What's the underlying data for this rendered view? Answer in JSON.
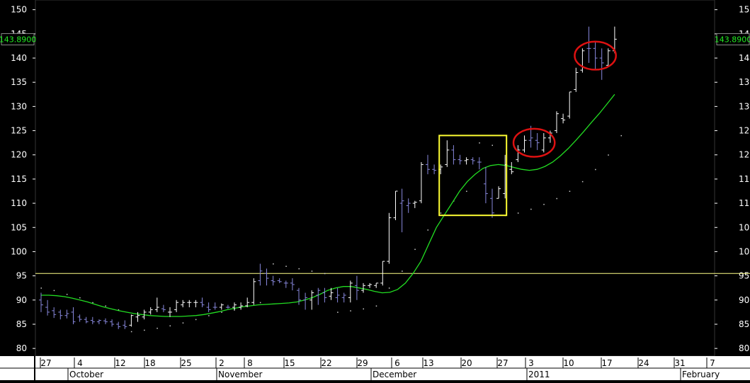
{
  "price_readout": "143.8900",
  "chart_data": {
    "type": "ohlc",
    "ylim": [
      80,
      152
    ],
    "y_ticks": [
      80,
      85,
      90,
      95,
      100,
      105,
      110,
      115,
      120,
      125,
      130,
      135,
      140,
      145,
      150
    ],
    "horizontal_line": 95.5,
    "last_price": 143.89,
    "x_day_labels": [
      "27",
      "4",
      "12",
      "18",
      "25",
      "2",
      "8",
      "15",
      "22",
      "29",
      "6",
      "13",
      "20",
      "27",
      "3",
      "10",
      "17",
      "24",
      "31",
      "7"
    ],
    "x_month_labels": [
      "October",
      "November",
      "December",
      "2011",
      "February"
    ],
    "bars": [
      {
        "high": 91.5,
        "low": 87.5,
        "open": 90,
        "close": 89,
        "dir": "down"
      },
      {
        "high": 90,
        "low": 86.8,
        "open": 88.5,
        "close": 87.5,
        "dir": "down"
      },
      {
        "high": 88.5,
        "low": 86.3,
        "open": 87.8,
        "close": 87.0,
        "dir": "down"
      },
      {
        "high": 88,
        "low": 86,
        "open": 87.5,
        "close": 86.8,
        "dir": "down"
      },
      {
        "high": 88,
        "low": 86.2,
        "open": 86.8,
        "close": 87.2,
        "dir": "down"
      },
      {
        "high": 88.5,
        "low": 85,
        "open": 87.5,
        "close": 85.5,
        "dir": "down"
      },
      {
        "high": 87,
        "low": 85.5,
        "open": 86.5,
        "close": 86,
        "dir": "down"
      },
      {
        "high": 86.5,
        "low": 85.2,
        "open": 86,
        "close": 85.5,
        "dir": "down"
      },
      {
        "high": 86.5,
        "low": 85,
        "open": 85.8,
        "close": 85.5,
        "dir": "down"
      },
      {
        "high": 86,
        "low": 85,
        "open": 85.5,
        "close": 85.8,
        "dir": "down"
      },
      {
        "high": 86.2,
        "low": 85,
        "open": 85.7,
        "close": 85.5,
        "dir": "down"
      },
      {
        "high": 86,
        "low": 84.5,
        "open": 85.5,
        "close": 85,
        "dir": "down"
      },
      {
        "high": 85.5,
        "low": 84,
        "open": 85,
        "close": 84.5,
        "dir": "down"
      },
      {
        "high": 85.8,
        "low": 84,
        "open": 84.8,
        "close": 84.5,
        "dir": "down"
      },
      {
        "high": 87,
        "low": 84.5,
        "open": 84.8,
        "close": 86.8,
        "dir": "up"
      },
      {
        "high": 87.5,
        "low": 85.5,
        "open": 86.5,
        "close": 86.8,
        "dir": "up"
      },
      {
        "high": 88,
        "low": 86,
        "open": 86.5,
        "close": 87.5,
        "dir": "up"
      },
      {
        "high": 88.5,
        "low": 87,
        "open": 87.5,
        "close": 88,
        "dir": "up"
      },
      {
        "high": 90.5,
        "low": 87.5,
        "open": 88,
        "close": 88.5,
        "dir": "up"
      },
      {
        "high": 89,
        "low": 87.5,
        "open": 88.2,
        "close": 88.0,
        "dir": "down"
      },
      {
        "high": 88.5,
        "low": 86.5,
        "open": 87.5,
        "close": 87.5,
        "dir": "up"
      },
      {
        "high": 90,
        "low": 87.5,
        "open": 88,
        "close": 89.5,
        "dir": "up"
      },
      {
        "high": 90,
        "low": 88.5,
        "open": 89,
        "close": 89.5,
        "dir": "up"
      },
      {
        "high": 90,
        "low": 88.5,
        "open": 89.5,
        "close": 89.5,
        "dir": "up"
      },
      {
        "high": 90,
        "low": 88.5,
        "open": 89.5,
        "close": 89.5,
        "dir": "up"
      },
      {
        "high": 90.5,
        "low": 88.5,
        "open": 89.5,
        "close": 89.0,
        "dir": "down"
      },
      {
        "high": 89.5,
        "low": 87.5,
        "open": 88.5,
        "close": 88,
        "dir": "down"
      },
      {
        "high": 89.5,
        "low": 88,
        "open": 88.5,
        "close": 88.5,
        "dir": "down"
      },
      {
        "high": 89.3,
        "low": 88,
        "open": 88.5,
        "close": 89,
        "dir": "up"
      },
      {
        "high": 89,
        "low": 88.2,
        "open": 88.5,
        "close": 88.5,
        "dir": "down"
      },
      {
        "high": 89.5,
        "low": 87.8,
        "open": 88.5,
        "close": 89,
        "dir": "up"
      },
      {
        "high": 89.5,
        "low": 88,
        "open": 88.5,
        "close": 88.8,
        "dir": "up"
      },
      {
        "high": 90.5,
        "low": 88.5,
        "open": 88.8,
        "close": 89.5,
        "dir": "up"
      },
      {
        "high": 94.5,
        "low": 89,
        "open": 89.5,
        "close": 93.8,
        "dir": "up"
      },
      {
        "high": 97.5,
        "low": 93,
        "open": 94,
        "close": 96,
        "dir": "down"
      },
      {
        "high": 96.5,
        "low": 93,
        "open": 95.5,
        "close": 94.5,
        "dir": "down"
      },
      {
        "high": 95,
        "low": 93,
        "open": 94,
        "close": 93.8,
        "dir": "down"
      },
      {
        "high": 94.5,
        "low": 93.5,
        "open": 94,
        "close": 93.8,
        "dir": "down"
      },
      {
        "high": 94,
        "low": 92.5,
        "open": 93.5,
        "close": 93.5,
        "dir": "down"
      },
      {
        "high": 94.5,
        "low": 92,
        "open": 93.5,
        "close": 93.2,
        "dir": "down"
      },
      {
        "high": 92.5,
        "low": 89,
        "open": 92,
        "close": 90,
        "dir": "down"
      },
      {
        "high": 91.5,
        "low": 88,
        "open": 90,
        "close": 90.5,
        "dir": "down"
      },
      {
        "high": 92,
        "low": 88,
        "open": 90,
        "close": 91.5,
        "dir": "up"
      },
      {
        "high": 92.5,
        "low": 89,
        "open": 91,
        "close": 92,
        "dir": "down"
      },
      {
        "high": 92.5,
        "low": 89.5,
        "open": 91.5,
        "close": 90.5,
        "dir": "down"
      },
      {
        "high": 92.5,
        "low": 90,
        "open": 90.8,
        "close": 91.5,
        "dir": "up"
      },
      {
        "high": 92.5,
        "low": 89.5,
        "open": 90.5,
        "close": 91,
        "dir": "down"
      },
      {
        "high": 91.5,
        "low": 89.5,
        "open": 90.5,
        "close": 91,
        "dir": "down"
      },
      {
        "high": 94,
        "low": 89.5,
        "open": 90.5,
        "close": 93.5,
        "dir": "up"
      },
      {
        "high": 95,
        "low": 90,
        "open": 93,
        "close": 92,
        "dir": "down"
      },
      {
        "high": 93.5,
        "low": 91.5,
        "open": 92,
        "close": 93,
        "dir": "up"
      },
      {
        "high": 93.5,
        "low": 92.5,
        "open": 93,
        "close": 93.2,
        "dir": "up"
      },
      {
        "high": 93.5,
        "low": 92.5,
        "open": 93,
        "close": 93.5,
        "dir": "up"
      },
      {
        "high": 98,
        "low": 93,
        "open": 93.5,
        "close": 98,
        "dir": "up"
      },
      {
        "high": 108,
        "low": 97.5,
        "open": 98,
        "close": 107,
        "dir": "up"
      },
      {
        "high": 112.5,
        "low": 106.5,
        "open": 107,
        "close": 112.5,
        "dir": "up"
      },
      {
        "high": 113,
        "low": 104,
        "open": 110,
        "close": 110.5,
        "dir": "down"
      },
      {
        "high": 111,
        "low": 108,
        "open": 109.5,
        "close": 110,
        "dir": "down"
      },
      {
        "high": 110.5,
        "low": 109,
        "open": 110,
        "close": 110.2,
        "dir": "up"
      },
      {
        "high": 118.5,
        "low": 110,
        "open": 110.5,
        "close": 118,
        "dir": "up"
      },
      {
        "high": 120,
        "low": 116,
        "open": 118,
        "close": 117,
        "dir": "down"
      },
      {
        "high": 118,
        "low": 116,
        "open": 117,
        "close": 116.8,
        "dir": "down"
      },
      {
        "high": 118,
        "low": 116,
        "open": 117,
        "close": 117.5,
        "dir": "up"
      },
      {
        "high": 123,
        "low": 117.5,
        "open": 118,
        "close": 121,
        "dir": "up"
      },
      {
        "high": 122,
        "low": 118,
        "open": 121,
        "close": 119,
        "dir": "down"
      },
      {
        "high": 120,
        "low": 118,
        "open": 119,
        "close": 118.8,
        "dir": "down"
      },
      {
        "high": 119.5,
        "low": 118,
        "open": 118.8,
        "close": 119,
        "dir": "up"
      },
      {
        "high": 119.5,
        "low": 118,
        "open": 119,
        "close": 118.8,
        "dir": "down"
      },
      {
        "high": 119.5,
        "low": 117,
        "open": 118.5,
        "close": 118.5,
        "dir": "down"
      },
      {
        "high": 117.5,
        "low": 110,
        "open": 114,
        "close": 112,
        "dir": "down"
      },
      {
        "high": 113,
        "low": 107,
        "open": 111,
        "close": 108,
        "dir": "down"
      },
      {
        "high": 113.5,
        "low": 111,
        "open": 111,
        "close": 113,
        "dir": "up"
      },
      {
        "high": 120,
        "low": 111,
        "open": 112,
        "close": 118,
        "dir": "up"
      },
      {
        "high": 118.5,
        "low": 116,
        "open": 117,
        "close": 116.5,
        "dir": "up"
      },
      {
        "high": 122,
        "low": 118.5,
        "open": 119,
        "close": 121,
        "dir": "up"
      },
      {
        "high": 124,
        "low": 120.5,
        "open": 121,
        "close": 123,
        "dir": "up"
      },
      {
        "high": 126,
        "low": 121.5,
        "open": 123,
        "close": 123.5,
        "dir": "down"
      },
      {
        "high": 124.5,
        "low": 121,
        "open": 123,
        "close": 122.5,
        "dir": "down"
      },
      {
        "high": 124.5,
        "low": 120.5,
        "open": 121,
        "close": 123.5,
        "dir": "up"
      },
      {
        "high": 125,
        "low": 122.5,
        "open": 123.5,
        "close": 124.5,
        "dir": "up"
      },
      {
        "high": 129,
        "low": 124.5,
        "open": 125,
        "close": 128.5,
        "dir": "up"
      },
      {
        "high": 128.5,
        "low": 126.5,
        "open": 127.5,
        "close": 127.2,
        "dir": "up"
      },
      {
        "high": 133,
        "low": 127.5,
        "open": 128,
        "close": 133,
        "dir": "up"
      },
      {
        "high": 138,
        "low": 133,
        "open": 133.5,
        "close": 137,
        "dir": "up"
      },
      {
        "high": 142,
        "low": 137,
        "open": 137.5,
        "close": 141.5,
        "dir": "up"
      },
      {
        "high": 146.5,
        "low": 139,
        "open": 142,
        "close": 142,
        "dir": "down"
      },
      {
        "high": 143.5,
        "low": 137.5,
        "open": 142,
        "close": 140,
        "dir": "down"
      },
      {
        "high": 142,
        "low": 135.5,
        "open": 140,
        "close": 139,
        "dir": "down"
      },
      {
        "high": 142,
        "low": 138.5,
        "open": 138.5,
        "close": 141.5,
        "dir": "up"
      },
      {
        "high": 146.5,
        "low": 141,
        "open": 141.5,
        "close": 143.9,
        "dir": "up"
      }
    ],
    "ma_line": [
      91.0,
      91.0,
      90.9,
      90.7,
      90.4,
      90.0,
      89.6,
      89.1,
      88.6,
      88.2,
      87.8,
      87.5,
      87.2,
      87.0,
      86.8,
      86.7,
      86.6,
      86.6,
      86.6,
      86.7,
      86.8,
      87.0,
      87.3,
      87.6,
      88.0,
      88.3,
      88.6,
      88.8,
      89.0,
      89.1,
      89.2,
      89.3,
      89.4,
      89.6,
      90.0,
      90.5,
      91.2,
      92.0,
      92.5,
      92.8,
      92.8,
      92.5,
      92.2,
      91.8,
      91.5,
      91.6,
      92.2,
      93.5,
      95.5,
      98.0,
      101.5,
      105.0,
      107.5,
      110.0,
      112.5,
      114.5,
      116.0,
      117.2,
      117.8,
      118.0,
      117.8,
      117.4,
      117.0,
      116.8,
      117.0,
      117.6,
      118.5,
      119.8,
      121.3,
      123.0,
      124.8,
      126.7,
      128.5,
      130.5,
      132.5
    ],
    "ma_start_bar": 0,
    "sar_dots": [
      {
        "bar": 0,
        "v": 92.5
      },
      {
        "bar": 2,
        "v": 92.0
      },
      {
        "bar": 4,
        "v": 91.2
      },
      {
        "bar": 6,
        "v": 90.5
      },
      {
        "bar": 8,
        "v": 89.5
      },
      {
        "bar": 10,
        "v": 88.8
      },
      {
        "bar": 12,
        "v": 88.0
      },
      {
        "bar": 14,
        "v": 83.5
      },
      {
        "bar": 16,
        "v": 83.8
      },
      {
        "bar": 18,
        "v": 84.2
      },
      {
        "bar": 20,
        "v": 84.7
      },
      {
        "bar": 22,
        "v": 85.3
      },
      {
        "bar": 24,
        "v": 86.0
      },
      {
        "bar": 26,
        "v": 86.8
      },
      {
        "bar": 28,
        "v": 87.5
      },
      {
        "bar": 30,
        "v": 88.2
      },
      {
        "bar": 32,
        "v": 88.8
      },
      {
        "bar": 34,
        "v": 89.5
      },
      {
        "bar": 36,
        "v": 97.5
      },
      {
        "bar": 38,
        "v": 97.0
      },
      {
        "bar": 40,
        "v": 96.5
      },
      {
        "bar": 42,
        "v": 96.0
      },
      {
        "bar": 44,
        "v": 95.5
      },
      {
        "bar": 46,
        "v": 87.5
      },
      {
        "bar": 48,
        "v": 87.8
      },
      {
        "bar": 50,
        "v": 88.2
      },
      {
        "bar": 52,
        "v": 88.8
      },
      {
        "bar": 54,
        "v": 92.5
      },
      {
        "bar": 56,
        "v": 96.0
      },
      {
        "bar": 58,
        "v": 100.5
      },
      {
        "bar": 60,
        "v": 104.5
      },
      {
        "bar": 62,
        "v": 108.0
      },
      {
        "bar": 64,
        "v": 110.5
      },
      {
        "bar": 66,
        "v": 112.5
      },
      {
        "bar": 68,
        "v": 122.5
      },
      {
        "bar": 70,
        "v": 122.0
      },
      {
        "bar": 72,
        "v": 107.5
      },
      {
        "bar": 74,
        "v": 108.0
      },
      {
        "bar": 76,
        "v": 108.8
      },
      {
        "bar": 78,
        "v": 109.8
      },
      {
        "bar": 80,
        "v": 111.0
      },
      {
        "bar": 82,
        "v": 112.5
      },
      {
        "bar": 84,
        "v": 114.5
      },
      {
        "bar": 86,
        "v": 117.0
      },
      {
        "bar": 88,
        "v": 120.0
      },
      {
        "bar": 90,
        "v": 124.0
      }
    ],
    "annotations": [
      {
        "type": "rect",
        "color": "#ffff33",
        "bar_from": 62,
        "bar_to": 72,
        "y_from": 107.5,
        "y_to": 124.0
      },
      {
        "type": "ellipse",
        "color": "#dd1111",
        "bar_center": 76.5,
        "y_center": 122.5,
        "bar_radius": 3.2,
        "y_radius": 2.9
      },
      {
        "type": "ellipse",
        "color": "#dd1111",
        "bar_center": 86,
        "y_center": 140.5,
        "bar_radius": 3.2,
        "y_radius": 2.9
      }
    ],
    "colors": {
      "background": "#000000",
      "bar_up": "#ffffff",
      "bar_down": "#8888dd",
      "ma": "#22dd22",
      "hline": "#ffff88",
      "sar": "#cccccc",
      "price_tag_text": "#22ee22",
      "axis_text": "#ffffff"
    }
  }
}
